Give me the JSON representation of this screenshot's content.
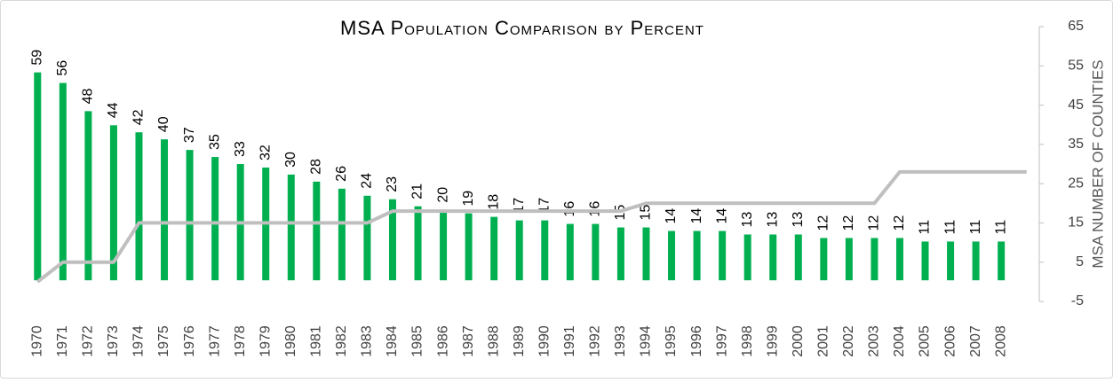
{
  "chart_data": {
    "type": "bar-line",
    "title": "MSA Population Comparison by Percent",
    "y2_label": "MSA NUMBER OF COUNTIES",
    "categories": [
      "1970",
      "1971",
      "1972",
      "1973",
      "1974",
      "1975",
      "1976",
      "1977",
      "1978",
      "1979",
      "1980",
      "1981",
      "1982",
      "1983",
      "1984",
      "1985",
      "1986",
      "1987",
      "1988",
      "1989",
      "1990",
      "1991",
      "1992",
      "1993",
      "1994",
      "1995",
      "1996",
      "1997",
      "1998",
      "1999",
      "2000",
      "2001",
      "2002",
      "2003",
      "2004",
      "2005",
      "2006",
      "2007",
      "2008",
      null
    ],
    "series": [
      {
        "type": "bar",
        "color": "#00b050",
        "values": [
          59,
          56,
          48,
          44,
          42,
          40,
          37,
          35,
          33,
          32,
          30,
          28,
          26,
          24,
          23,
          21,
          20,
          19,
          18,
          17,
          17,
          16,
          16,
          15,
          15,
          14,
          14,
          14,
          13,
          13,
          13,
          12,
          12,
          12,
          12,
          11,
          11,
          11,
          11,
          null
        ]
      },
      {
        "type": "line",
        "color": "#bfbfbf",
        "axis": "y2",
        "values": [
          0,
          5,
          5,
          5,
          15,
          15,
          15,
          15,
          15,
          15,
          15,
          15,
          15,
          15,
          18,
          18,
          18,
          18,
          18,
          18,
          18,
          18,
          18,
          18,
          20,
          20,
          20,
          20,
          20,
          20,
          20,
          20,
          20,
          20,
          28,
          28,
          28,
          28,
          28,
          28
        ]
      }
    ],
    "ylim": [
      -6,
      72
    ],
    "y2lim": [
      -5,
      65
    ],
    "y2ticks": [
      -5,
      5,
      15,
      25,
      35,
      45,
      55,
      65
    ]
  }
}
